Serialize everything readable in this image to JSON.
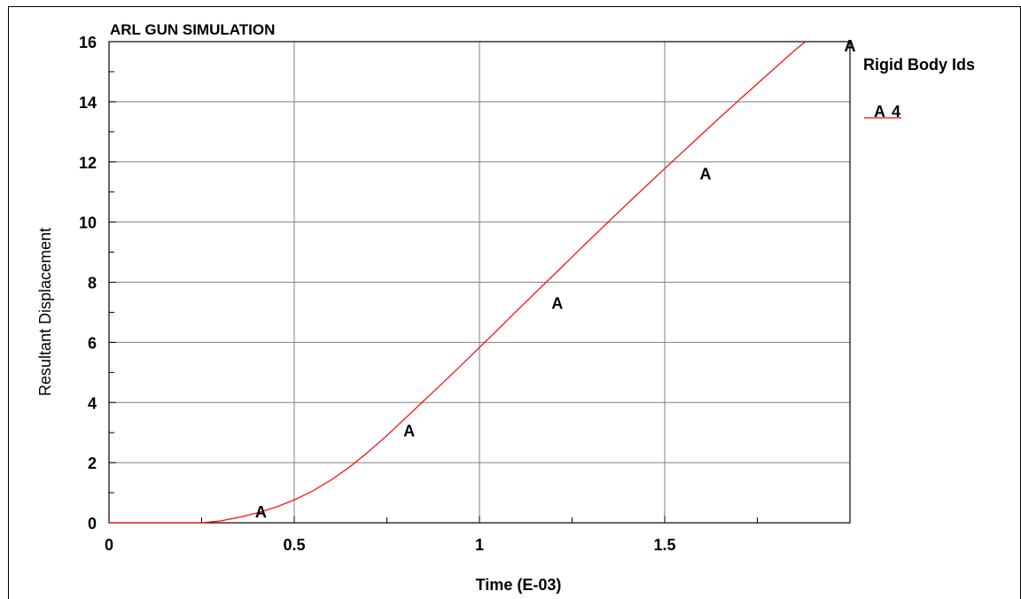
{
  "chart_data": {
    "type": "line",
    "title": "ARL GUN SIMULATION",
    "xlabel": "Time (E-03)",
    "ylabel": "Resultant Displacement",
    "xlim": [
      0,
      2.0
    ],
    "ylim": [
      0,
      16
    ],
    "x_ticks": [
      0,
      0.5,
      1,
      1.5
    ],
    "x_tick_labels": [
      "0",
      "0.5",
      "1",
      "1.5"
    ],
    "x_minor_ticks": [
      0.25,
      0.75,
      1.25,
      1.75
    ],
    "y_ticks": [
      0,
      2,
      4,
      6,
      8,
      10,
      12,
      14,
      16
    ],
    "y_tick_labels": [
      "0",
      "2",
      "4",
      "6",
      "8",
      "10",
      "12",
      "14",
      "16"
    ],
    "y_minor_ticks": [
      1,
      3,
      5,
      7,
      9,
      11,
      13,
      15
    ],
    "grid": true,
    "legend": {
      "title": "Rigid Body Ids",
      "placement": "right",
      "entries": [
        {
          "marker": "A",
          "label": "4",
          "color": "#ff0000"
        }
      ]
    },
    "series": [
      {
        "name": "4",
        "marker": "A",
        "color": "#ff0000",
        "x": [
          0,
          0.1,
          0.2,
          0.25,
          0.3,
          0.35,
          0.4,
          0.45,
          0.5,
          0.55,
          0.6,
          0.65,
          0.7,
          0.75,
          0.8,
          0.85,
          0.9,
          0.95,
          1.0,
          1.05,
          1.1,
          1.15,
          1.2,
          1.25,
          1.3,
          1.35,
          1.4,
          1.45,
          1.5,
          1.55,
          1.6,
          1.65,
          1.7,
          1.75,
          1.8,
          1.85,
          1.9,
          1.95,
          2.0
        ],
        "y": [
          0,
          0,
          0,
          0,
          0.06,
          0.18,
          0.33,
          0.52,
          0.76,
          1.06,
          1.43,
          1.86,
          2.36,
          2.9,
          3.48,
          4.06,
          4.64,
          5.23,
          5.83,
          6.43,
          7.04,
          7.64,
          8.24,
          8.84,
          9.44,
          10.03,
          10.62,
          11.2,
          11.78,
          12.35,
          12.92,
          13.49,
          14.05,
          14.6,
          15.15,
          15.7,
          16.2,
          16.7,
          17.2
        ]
      }
    ],
    "marker_points": [
      {
        "x": 0.41,
        "y": 0.35,
        "label": "A"
      },
      {
        "x": 0.81,
        "y": 3.05,
        "label": "A"
      },
      {
        "x": 1.21,
        "y": 7.3,
        "label": "A"
      },
      {
        "x": 1.61,
        "y": 11.6,
        "label": "A"
      },
      {
        "x": 2.0,
        "y": 15.85,
        "label": "A"
      }
    ]
  },
  "colors": {
    "series": "#ff0000",
    "grid": "#808080",
    "axis": "#000000",
    "background": "#ffffff"
  }
}
